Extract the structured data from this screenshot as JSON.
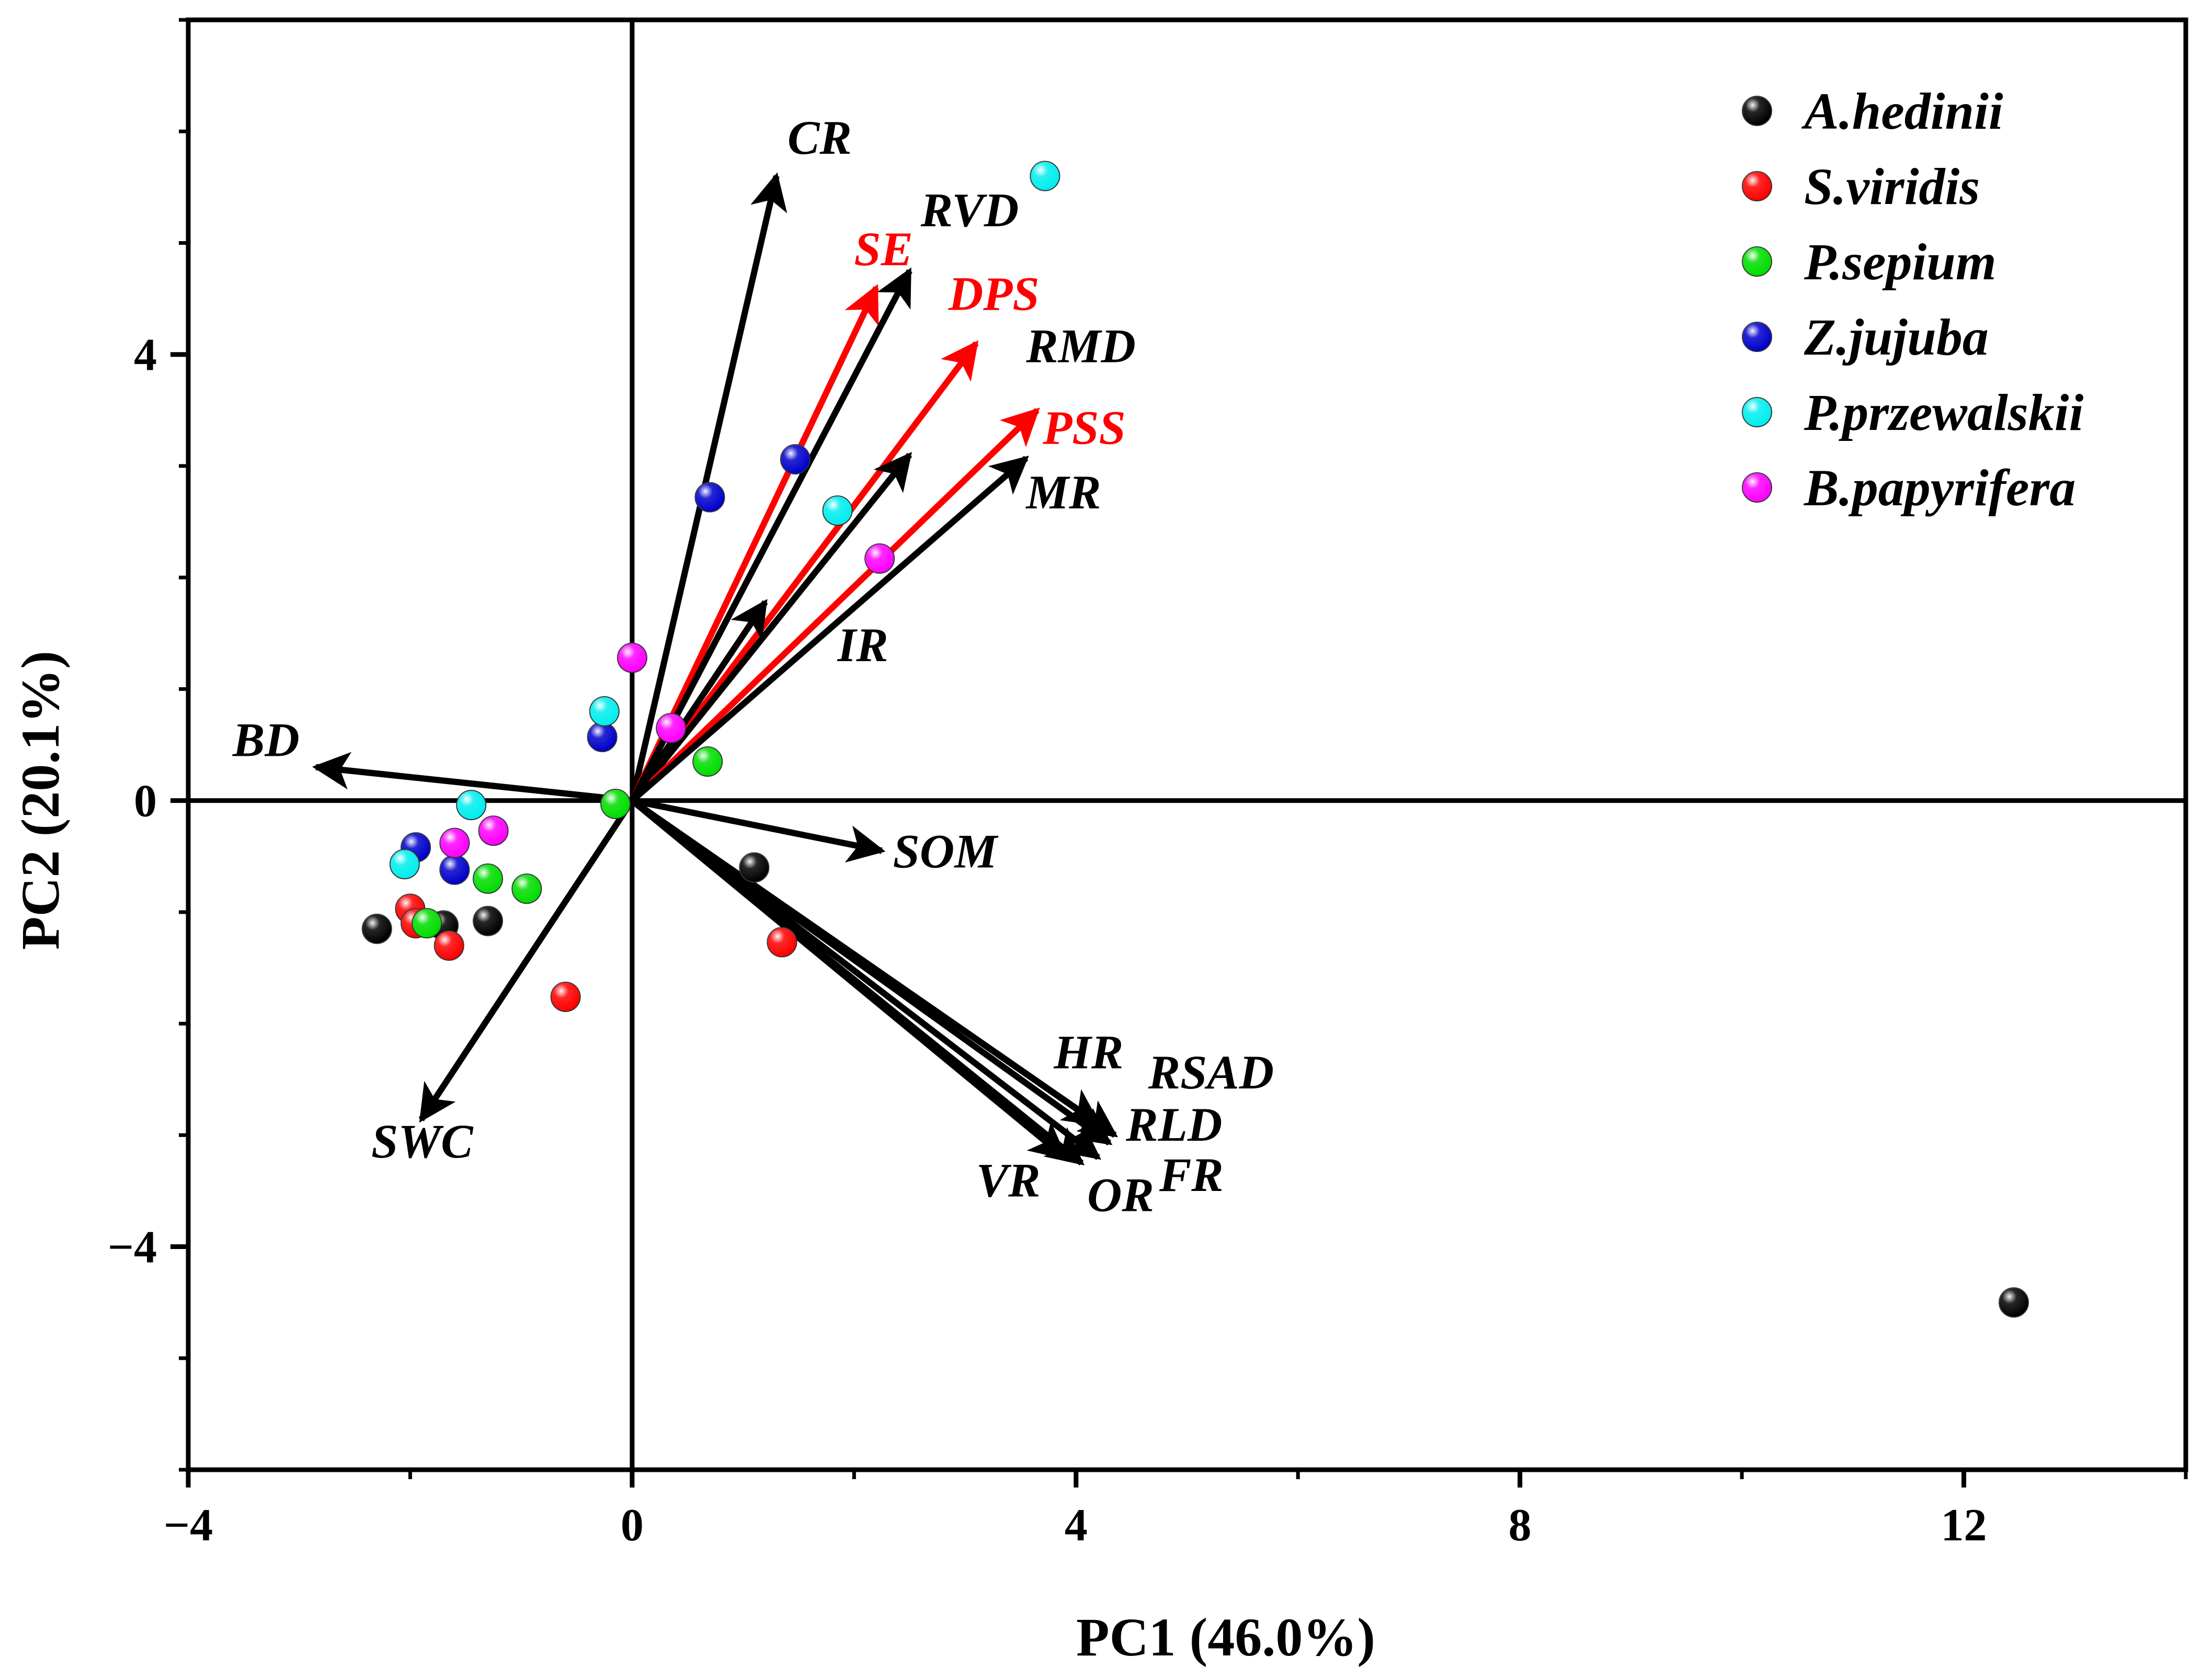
{
  "chart_data": {
    "type": "scatter",
    "subtype": "pca-biplot",
    "xlabel": "PC1 (46.0%)",
    "ylabel": "PC2 (20.1%)",
    "xlim": [
      -4,
      14
    ],
    "ylim": [
      -6,
      7
    ],
    "xticks": [
      -4,
      0,
      4,
      8,
      12
    ],
    "xtick_labels": [
      "−4",
      "0",
      "4",
      "8",
      "12"
    ],
    "yticks": [
      -4,
      0,
      4
    ],
    "ytick_labels": [
      "−4",
      "0",
      "4"
    ],
    "legend_position": "top-right",
    "series": [
      {
        "name": "A.hedinii",
        "color": "#000000",
        "points": [
          [
            -2.3,
            -1.15
          ],
          [
            -1.3,
            -1.08
          ],
          [
            -1.7,
            -1.12
          ],
          [
            1.1,
            -0.6
          ],
          [
            12.45,
            -4.5
          ]
        ]
      },
      {
        "name": "S.viridis",
        "color": "#ff0000",
        "points": [
          [
            -2.0,
            -0.97
          ],
          [
            -1.95,
            -1.1
          ],
          [
            -1.65,
            -1.3
          ],
          [
            -0.6,
            -1.76
          ],
          [
            1.35,
            -1.27
          ]
        ]
      },
      {
        "name": "P.sepium",
        "color": "#00dd00",
        "points": [
          [
            -1.85,
            -1.1
          ],
          [
            -1.3,
            -0.7
          ],
          [
            -0.95,
            -0.79
          ],
          [
            -0.15,
            -0.03
          ],
          [
            0.68,
            0.35
          ]
        ]
      },
      {
        "name": "Z.jujuba",
        "color": "#0000cc",
        "points": [
          [
            -1.95,
            -0.42
          ],
          [
            -1.6,
            -0.62
          ],
          [
            -0.27,
            0.57
          ],
          [
            0.7,
            2.72
          ],
          [
            1.47,
            3.06
          ]
        ]
      },
      {
        "name": "P.przewalskii",
        "color": "#00eeee",
        "points": [
          [
            -2.05,
            -0.57
          ],
          [
            -1.45,
            -0.04
          ],
          [
            -0.25,
            0.8
          ],
          [
            1.85,
            2.6
          ],
          [
            3.72,
            5.6
          ]
        ]
      },
      {
        "name": "B.papyrifera",
        "color": "#ff00ff",
        "points": [
          [
            -1.6,
            -0.38
          ],
          [
            -1.25,
            -0.27
          ],
          [
            0.0,
            1.28
          ],
          [
            0.35,
            0.65
          ],
          [
            2.23,
            2.17
          ]
        ]
      }
    ],
    "loadings": [
      {
        "name": "CR",
        "x": 1.3,
        "y": 5.6,
        "color": "#000000"
      },
      {
        "name": "SE",
        "x": 2.2,
        "y": 4.6,
        "color": "#ff0000"
      },
      {
        "name": "RVD",
        "x": 2.5,
        "y": 4.75,
        "color": "#000000"
      },
      {
        "name": "DPS",
        "x": 3.1,
        "y": 4.1,
        "color": "#ff0000"
      },
      {
        "name": "RMD",
        "x": 2.5,
        "y": 3.1,
        "color": "#000000"
      },
      {
        "name": "PSS",
        "x": 3.65,
        "y": 3.5,
        "color": "#ff0000"
      },
      {
        "name": "MR",
        "x": 3.55,
        "y": 3.07,
        "color": "#000000"
      },
      {
        "name": "IR",
        "x": 1.2,
        "y": 1.78,
        "color": "#000000"
      },
      {
        "name": "BD",
        "x": -2.85,
        "y": 0.3,
        "color": "#000000"
      },
      {
        "name": "SOM",
        "x": 2.25,
        "y": -0.45,
        "color": "#000000"
      },
      {
        "name": "SWC",
        "x": -1.9,
        "y": -2.86,
        "color": "#000000"
      },
      {
        "name": "HR",
        "x": 4.2,
        "y": -2.9,
        "color": "#000000"
      },
      {
        "name": "RSAD",
        "x": 4.35,
        "y": -3.0,
        "color": "#000000"
      },
      {
        "name": "RLD",
        "x": 4.3,
        "y": -3.07,
        "color": "#000000"
      },
      {
        "name": "FR",
        "x": 4.2,
        "y": -3.2,
        "color": "#000000"
      },
      {
        "name": "OR",
        "x": 4.05,
        "y": -3.25,
        "color": "#000000"
      },
      {
        "name": "VR",
        "x": 3.9,
        "y": -3.2,
        "color": "#000000"
      }
    ],
    "loading_label_positions": {
      "CR": [
        1.4,
        5.8
      ],
      "SE": [
        2.0,
        4.8
      ],
      "RVD": [
        2.6,
        5.15
      ],
      "DPS": [
        2.85,
        4.4
      ],
      "RMD": [
        3.55,
        3.93
      ],
      "PSS": [
        3.7,
        3.2
      ],
      "MR": [
        3.55,
        2.62
      ],
      "IR": [
        1.85,
        1.25
      ],
      "BD": [
        -3.6,
        0.4
      ],
      "SOM": [
        2.35,
        -0.6
      ],
      "SWC": [
        -2.35,
        -3.2
      ],
      "HR": [
        3.8,
        -2.4
      ],
      "RSAD": [
        4.65,
        -2.58
      ],
      "RLD": [
        4.45,
        -3.05
      ],
      "FR": [
        4.75,
        -3.5
      ],
      "OR": [
        4.1,
        -3.68
      ],
      "VR": [
        3.1,
        -3.55
      ]
    }
  }
}
